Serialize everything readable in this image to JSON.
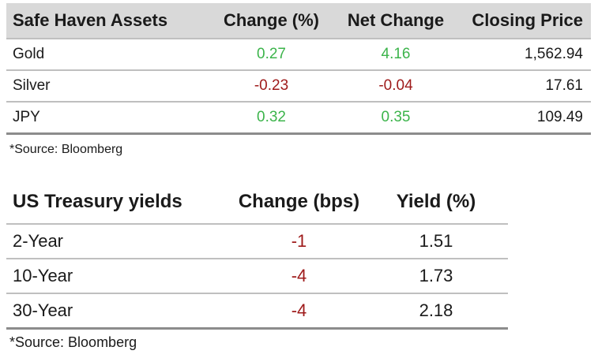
{
  "safe_haven": {
    "headers": [
      "Safe Haven Assets",
      "Change (%)",
      "Net Change",
      "Closing Price"
    ],
    "rows": [
      {
        "asset": "Gold",
        "change_pct": "0.27",
        "net_change": "4.16",
        "closing_price": "1,562.94",
        "direction": "up"
      },
      {
        "asset": "Silver",
        "change_pct": "-0.23",
        "net_change": "-0.04",
        "closing_price": "17.61",
        "direction": "down"
      },
      {
        "asset": "JPY",
        "change_pct": "0.32",
        "net_change": "0.35",
        "closing_price": "109.49",
        "direction": "up"
      }
    ],
    "source": "*Source: Bloomberg"
  },
  "treasury": {
    "headers": [
      "US Treasury yields",
      "Change (bps)",
      "Yield (%)"
    ],
    "rows": [
      {
        "term": "2-Year",
        "change_bps": "-1",
        "yield": "1.51"
      },
      {
        "term": "10-Year",
        "change_bps": "-4",
        "yield": "1.73"
      },
      {
        "term": "30-Year",
        "change_bps": "-4",
        "yield": "2.18"
      }
    ],
    "source": "*Source: Bloomberg"
  },
  "colors": {
    "positive": "#3cb44b",
    "negative": "#9e1a1a",
    "header_bg": "#d9d9d9",
    "rule": "#bfbfbf"
  }
}
